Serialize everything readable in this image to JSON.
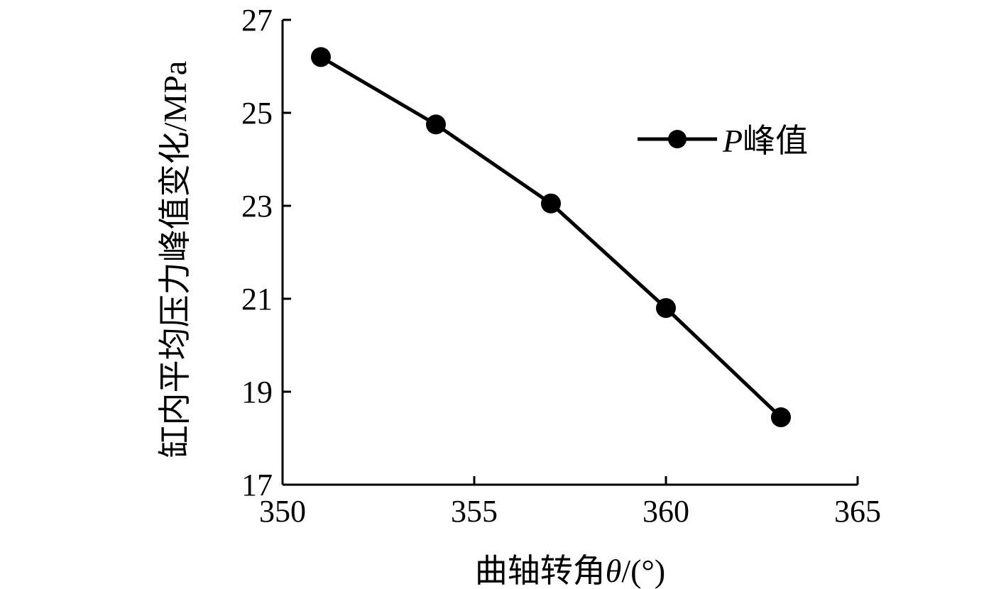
{
  "chart_data": {
    "type": "line",
    "title": "",
    "xlabel_prefix": "曲轴转角",
    "xlabel_symbol": "θ",
    "xlabel_suffix": "/(°)",
    "ylabel": "缸内平均压力峰值变化/MPa",
    "xlim": [
      350,
      365
    ],
    "ylim": [
      17,
      27
    ],
    "xticks": [
      350,
      355,
      360,
      365
    ],
    "yticks": [
      17,
      19,
      21,
      23,
      25,
      27
    ],
    "grid": false,
    "legend_position": "top-right",
    "series": [
      {
        "name_symbol": "P",
        "name_suffix": "峰值",
        "color": "#000000",
        "marker": "circle",
        "x": [
          351,
          354,
          357,
          360,
          363
        ],
        "y": [
          26.2,
          24.75,
          23.05,
          20.8,
          18.45
        ]
      }
    ]
  }
}
